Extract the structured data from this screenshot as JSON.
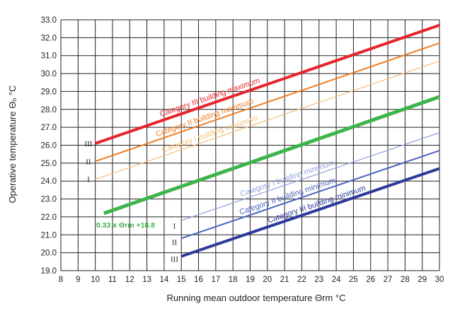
{
  "chart_data": {
    "type": "line",
    "xlabel": "Running mean outdoor temperature  Θrm °C",
    "ylabel": "Operative temperature  Θₒ °C",
    "xlim": [
      8,
      30
    ],
    "ylim": [
      19,
      33
    ],
    "x_ticks": [
      "8",
      "9",
      "10",
      "11",
      "12",
      "13",
      "14",
      "15",
      "16",
      "17",
      "18",
      "19",
      "20",
      "21",
      "22",
      "23",
      "24",
      "25",
      "26",
      "27",
      "28",
      "29",
      "30"
    ],
    "y_ticks": [
      "19.0",
      "20.0",
      "21.0",
      "22.0",
      "23.0",
      "24.0",
      "25.0",
      "26.0",
      "27.0",
      "28.0",
      "29.0",
      "30.0",
      "31.0",
      "32.0",
      "33.0"
    ],
    "grid": true,
    "series": [
      {
        "name": "Category III building maximum",
        "x": [
          10,
          30
        ],
        "y": [
          26.1,
          32.7
        ],
        "color": "#e8232a"
      },
      {
        "name": "Category II building maximum",
        "x": [
          10,
          30
        ],
        "y": [
          25.1,
          31.7
        ],
        "color": "#ef7d22"
      },
      {
        "name": "Category I building maximum",
        "x": [
          10,
          30
        ],
        "y": [
          24.1,
          30.7
        ],
        "color": "#f2c07a"
      },
      {
        "name": "0.33 x Θrm +18.8",
        "x": [
          10.5,
          30
        ],
        "y": [
          22.2,
          28.7
        ],
        "color": "#3cb54a"
      },
      {
        "name": "Category I building minimum",
        "x": [
          15,
          30
        ],
        "y": [
          21.8,
          26.7
        ],
        "color": "#8fa3dc"
      },
      {
        "name": "Category II building minimum",
        "x": [
          15,
          30
        ],
        "y": [
          20.8,
          25.7
        ],
        "color": "#4a63c0"
      },
      {
        "name": "Category III building minimum",
        "x": [
          15,
          30
        ],
        "y": [
          19.8,
          24.7
        ],
        "color": "#2d3a9c"
      }
    ],
    "category_marks": {
      "upper": [
        "III",
        "II",
        "I"
      ],
      "lower": [
        "I",
        "II",
        "III"
      ]
    },
    "formula_label": "0.33 x Θrm +18.8"
  }
}
